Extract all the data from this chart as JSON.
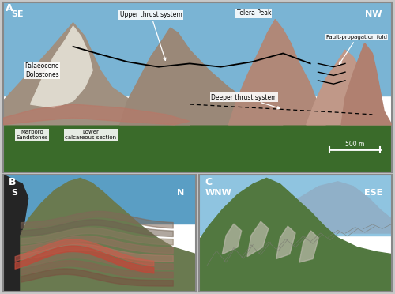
{
  "figure_bg": "#c8c8c8",
  "panel_border_color": "#888888",
  "panel_A": {
    "label": "A",
    "se_label": "SE",
    "nw_label": "NW",
    "sky_color": "#7ab4d4",
    "forest_color": "#3a6b2a",
    "ann_telera": "Telera Peak",
    "ann_upper": "Upper thrust system",
    "ann_fault": "Fault-propagation fold",
    "ann_paleo": "Palaeocene\nDolostones",
    "ann_deeper": "Deeper thrust system",
    "ann_marbore": "Marboro\nSandstones",
    "ann_lower": "Lower\ncalcareous section",
    "ann_scale": "500 m"
  },
  "panel_B": {
    "label": "B",
    "s_label": "S",
    "n_label": "N",
    "sky_color": "#5a9ec4"
  },
  "panel_C": {
    "label": "C",
    "wnw_label": "WNW",
    "ese_label": "ESE",
    "sky_color": "#8fc4e0"
  }
}
